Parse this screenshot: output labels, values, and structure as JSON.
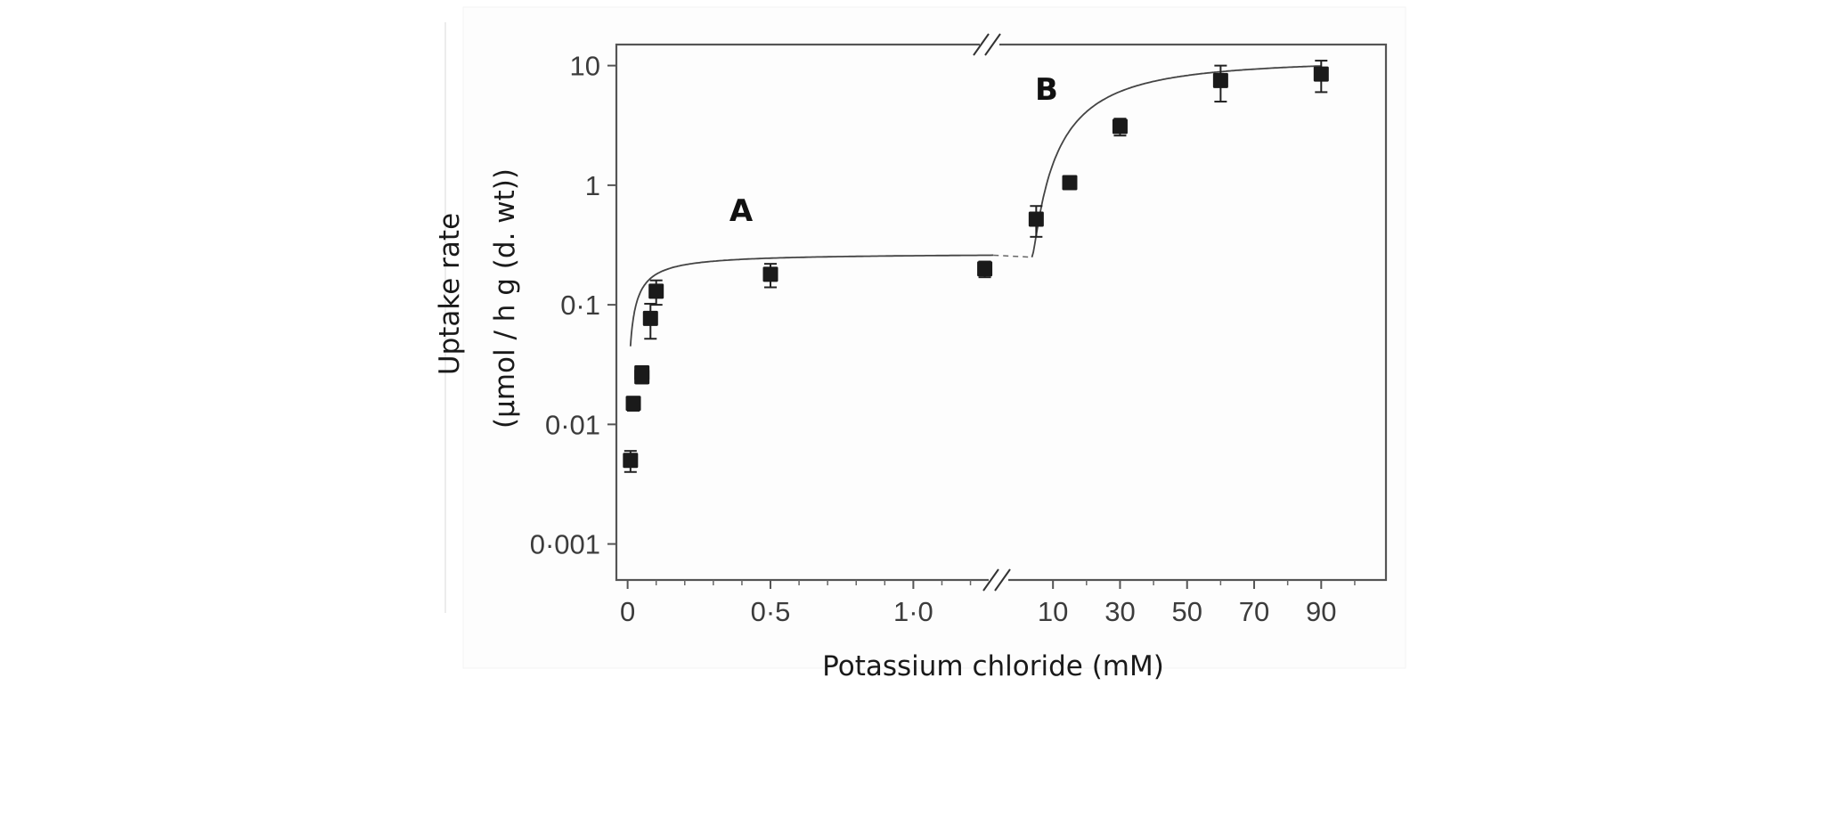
{
  "chart_data": {
    "type": "scatter",
    "title": "",
    "xlabel": "Potassium chloride (mM)",
    "ylabel_line1": "Uptake rate",
    "ylabel_line2": "(μmol / h g (d. wt))",
    "yscale": "log",
    "ylim": [
      0.0005,
      15
    ],
    "y_ticks": [
      {
        "value": 0.001,
        "label": "0·001"
      },
      {
        "value": 0.01,
        "label": "0·01"
      },
      {
        "value": 0.1,
        "label": "0·1"
      },
      {
        "value": 1,
        "label": "1"
      },
      {
        "value": 10,
        "label": "10"
      }
    ],
    "axis_break": true,
    "segment_A": {
      "label": "A",
      "xlim": [
        -0.03,
        1.27
      ],
      "x_ticks": [
        {
          "value": 0,
          "label": "0"
        },
        {
          "value": 0.5,
          "label": "0·5"
        },
        {
          "value": 1.0,
          "label": "1·0"
        }
      ],
      "points": [
        {
          "x": 0.01,
          "y": 0.005,
          "err": 0.001
        },
        {
          "x": 0.02,
          "y": 0.015,
          "err": 0.002
        },
        {
          "x": 0.05,
          "y": 0.027,
          "err": 0.003
        },
        {
          "x": 0.05,
          "y": 0.025,
          "err": 0.003
        },
        {
          "x": 0.08,
          "y": 0.077,
          "err": 0.025
        },
        {
          "x": 0.1,
          "y": 0.13,
          "err": 0.03
        },
        {
          "x": 0.5,
          "y": 0.18,
          "err": 0.04
        },
        {
          "x": 1.25,
          "y": 0.2,
          "err": 0.03
        }
      ],
      "fit": {
        "Vmax": 0.27,
        "Km": 0.05
      }
    },
    "segment_B": {
      "label": "B",
      "xlim": [
        -2,
        104
      ],
      "x_ticks": [
        {
          "value": 10,
          "label": "10"
        },
        {
          "value": 30,
          "label": "30"
        },
        {
          "value": 50,
          "label": "50"
        },
        {
          "value": 70,
          "label": "70"
        },
        {
          "value": 90,
          "label": "90"
        }
      ],
      "points": [
        {
          "x": 5,
          "y": 0.52,
          "err": 0.15
        },
        {
          "x": 15,
          "y": 1.05,
          "err": 0.12
        },
        {
          "x": 30,
          "y": 3.1,
          "err": 0.5
        },
        {
          "x": 60,
          "y": 7.5,
          "err": 2.5
        },
        {
          "x": 90,
          "y": 8.5,
          "err": 2.5
        }
      ],
      "fit": {
        "base": 0.25,
        "Vmax": 11.2,
        "Km": 25,
        "n": 1.5,
        "x0": 3.7
      }
    }
  }
}
